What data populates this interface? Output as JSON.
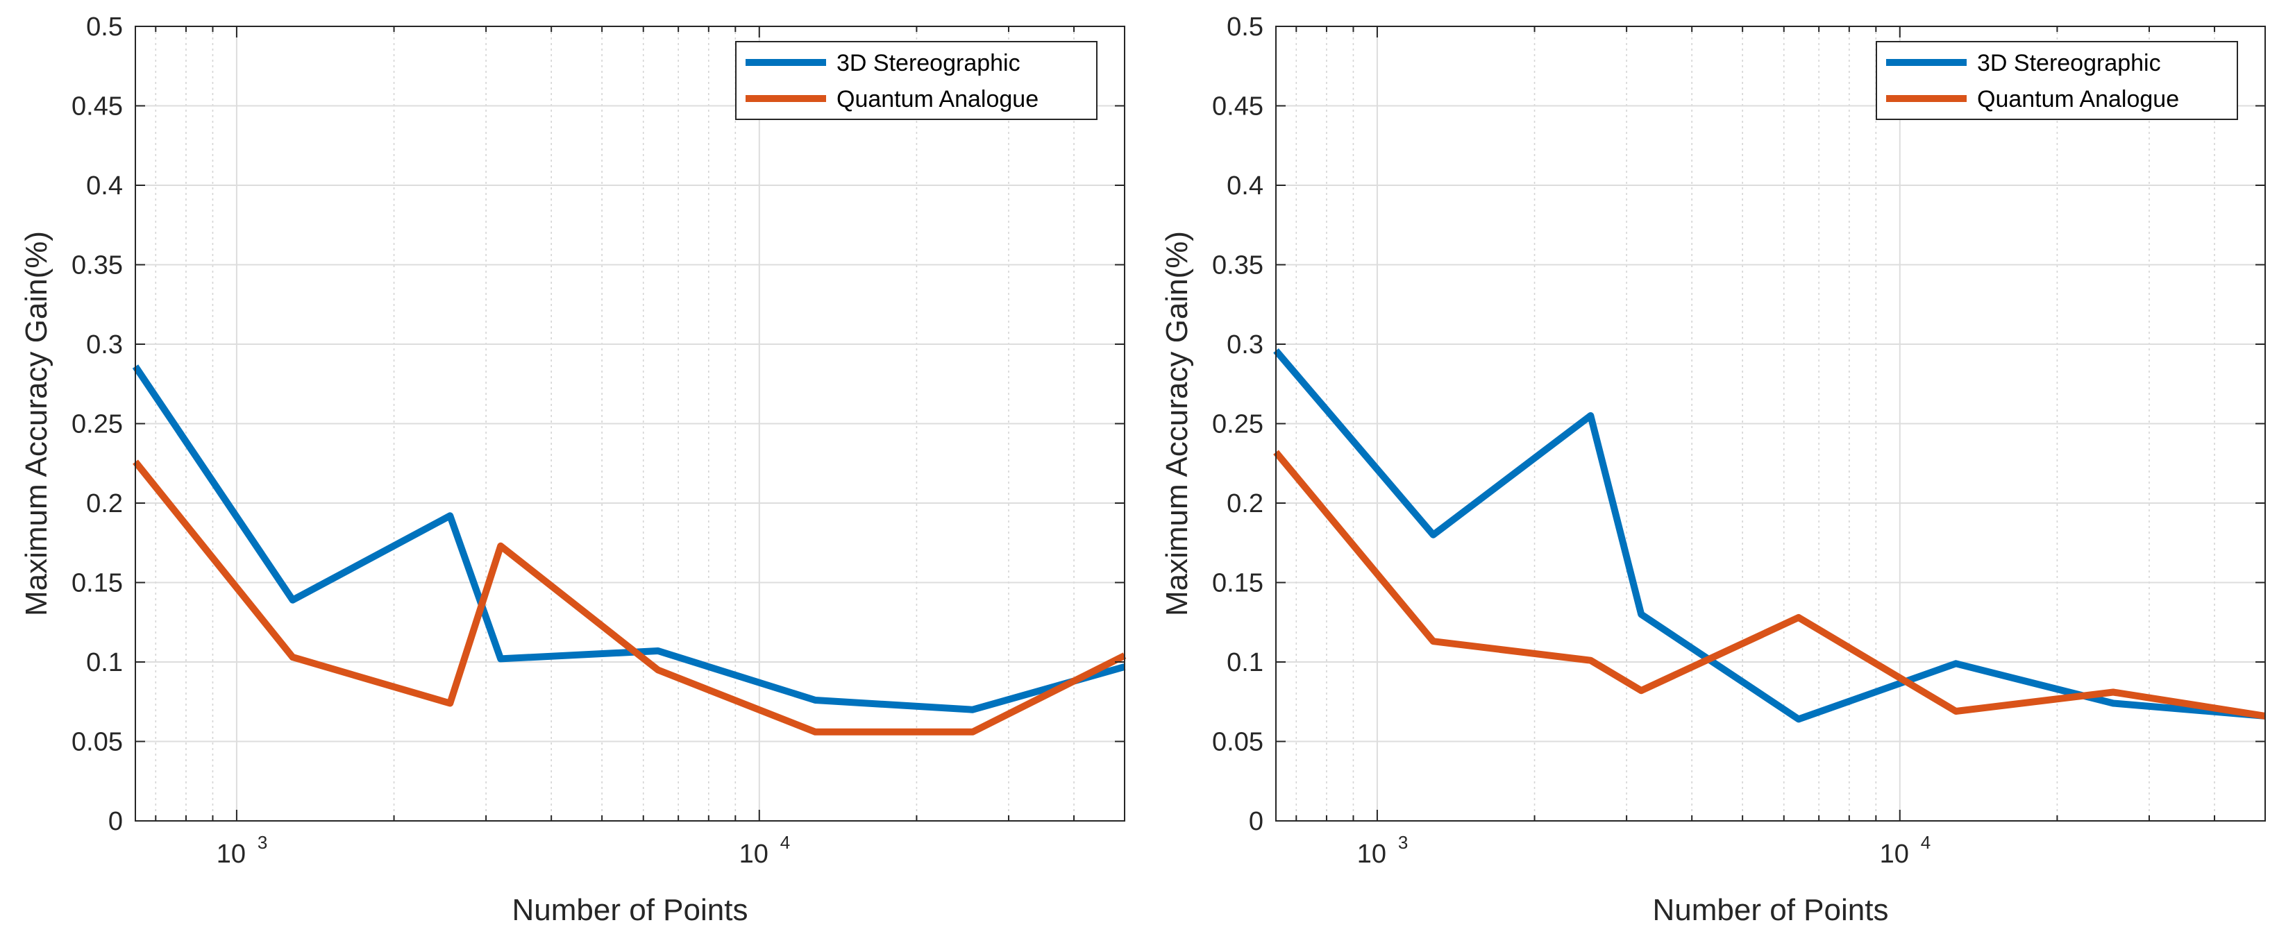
{
  "chart_data": [
    {
      "type": "line",
      "title": "",
      "xlabel": "Number of Points",
      "ylabel": "Maximum Accuracy Gain(%)",
      "xscale": "log",
      "xlim": [
        640,
        50000
      ],
      "ylim": [
        0,
        0.5
      ],
      "yticks": [
        0,
        0.05,
        0.1,
        0.15,
        0.2,
        0.25,
        0.3,
        0.35,
        0.4,
        0.45,
        0.5
      ],
      "ytick_labels": [
        "0",
        "0.05",
        "0.1",
        "0.15",
        "0.2",
        "0.25",
        "0.3",
        "0.35",
        "0.4",
        "0.45",
        "0.5"
      ],
      "xticks_major": [
        {
          "value": 1000,
          "base": "10",
          "exp": "3"
        },
        {
          "value": 10000,
          "base": "10",
          "exp": "4"
        }
      ],
      "grid": true,
      "legend_position": "top-right",
      "series": [
        {
          "name": "3D Stereographic",
          "color": "#0072BD",
          "x": [
            640,
            1280,
            2560,
            3200,
            6400,
            12800,
            25600,
            50000
          ],
          "y": [
            0.286,
            0.139,
            0.192,
            0.102,
            0.107,
            0.076,
            0.07,
            0.097
          ]
        },
        {
          "name": "Quantum Analogue",
          "color": "#D95319",
          "x": [
            640,
            1280,
            2560,
            3200,
            6400,
            12800,
            25600,
            50000
          ],
          "y": [
            0.226,
            0.103,
            0.074,
            0.173,
            0.095,
            0.056,
            0.056,
            0.104
          ]
        }
      ]
    },
    {
      "type": "line",
      "title": "",
      "xlabel": "Number of Points",
      "ylabel": "Maximum Accuracy Gain(%)",
      "xscale": "log",
      "xlim": [
        640,
        50000
      ],
      "ylim": [
        0,
        0.5
      ],
      "yticks": [
        0,
        0.05,
        0.1,
        0.15,
        0.2,
        0.25,
        0.3,
        0.35,
        0.4,
        0.45,
        0.5
      ],
      "ytick_labels": [
        "0",
        "0.05",
        "0.1",
        "0.15",
        "0.2",
        "0.25",
        "0.3",
        "0.35",
        "0.4",
        "0.45",
        "0.5"
      ],
      "xticks_major": [
        {
          "value": 1000,
          "base": "10",
          "exp": "3"
        },
        {
          "value": 10000,
          "base": "10",
          "exp": "4"
        }
      ],
      "grid": true,
      "legend_position": "top-right",
      "series": [
        {
          "name": "3D Stereographic",
          "color": "#0072BD",
          "x": [
            640,
            1280,
            2560,
            3200,
            6400,
            12800,
            25600,
            50000
          ],
          "y": [
            0.296,
            0.18,
            0.255,
            0.13,
            0.064,
            0.099,
            0.074,
            0.066
          ]
        },
        {
          "name": "Quantum Analogue",
          "color": "#D95319",
          "x": [
            640,
            1280,
            2560,
            3200,
            6400,
            12800,
            25600,
            50000
          ],
          "y": [
            0.232,
            0.113,
            0.101,
            0.082,
            0.128,
            0.069,
            0.081,
            0.066
          ]
        }
      ]
    }
  ]
}
